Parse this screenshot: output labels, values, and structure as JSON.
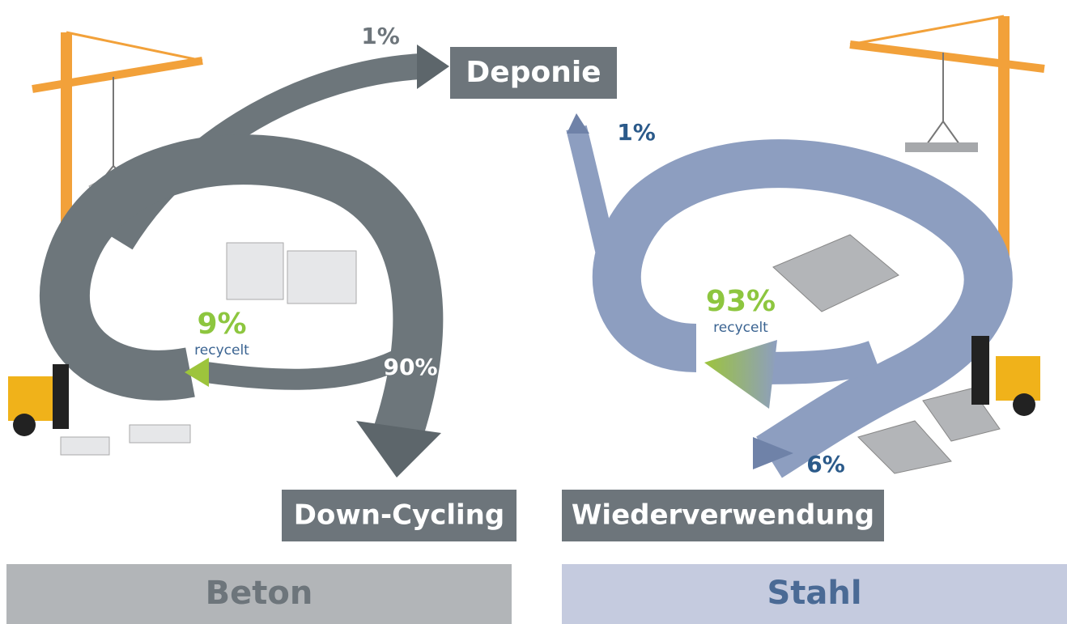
{
  "destinations": {
    "deponie": "Deponie",
    "downcycling": "Down-Cycling",
    "wiederverwendung": "Wiederverwendung"
  },
  "beton": {
    "title": "Beton",
    "deponie_share": "1%",
    "downcycling_share": "90%",
    "recycled_share": "9%",
    "recycled_label": "recycelt"
  },
  "stahl": {
    "title": "Stahl",
    "deponie_share": "1%",
    "reuse_share": "6%",
    "recycled_share": "93%",
    "recycled_label": "recycelt"
  }
}
